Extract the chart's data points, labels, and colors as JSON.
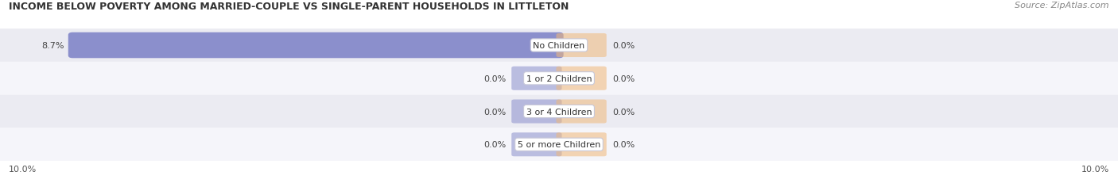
{
  "title": "INCOME BELOW POVERTY AMONG MARRIED-COUPLE VS SINGLE-PARENT HOUSEHOLDS IN LITTLETON",
  "source": "Source: ZipAtlas.com",
  "categories": [
    "No Children",
    "1 or 2 Children",
    "3 or 4 Children",
    "5 or more Children"
  ],
  "married_values": [
    8.7,
    0.0,
    0.0,
    0.0
  ],
  "single_values": [
    0.0,
    0.0,
    0.0,
    0.0
  ],
  "married_color": "#8b8fcc",
  "single_color": "#f0b87a",
  "x_max": 10.0,
  "x_left_label": "10.0%",
  "x_right_label": "10.0%",
  "row_bg_odd": "#ebebf2",
  "row_bg_even": "#f5f5fa",
  "title_fontsize": 9,
  "source_fontsize": 8,
  "label_fontsize": 8,
  "category_fontsize": 8
}
